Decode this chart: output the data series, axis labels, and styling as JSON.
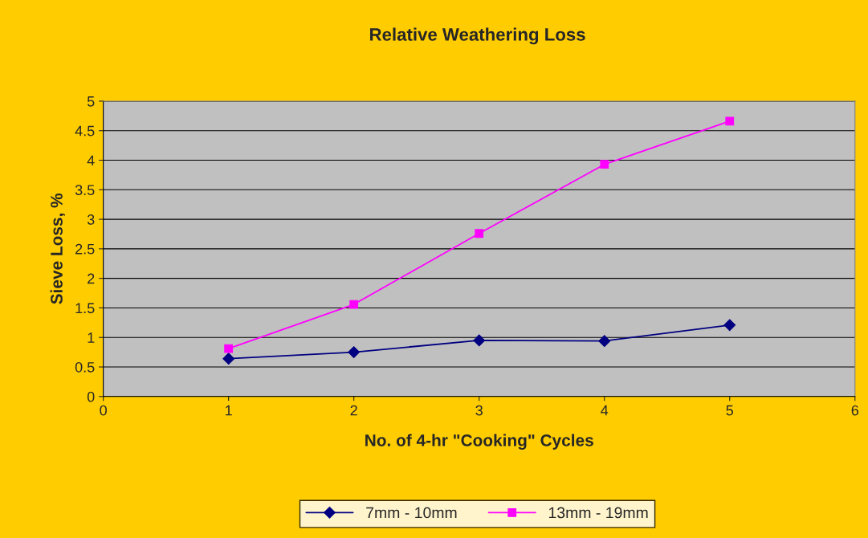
{
  "chart_data": {
    "type": "line",
    "title": "Relative Weathering Loss",
    "xlabel": "No. of 4-hr \"Cooking\" Cycles",
    "ylabel": "Sieve Loss, %",
    "x": [
      1,
      2,
      3,
      4,
      5
    ],
    "series": [
      {
        "name": "7mm - 10mm",
        "color": "#000080",
        "marker": "diamond",
        "values": [
          0.64,
          0.75,
          0.95,
          0.94,
          1.21
        ]
      },
      {
        "name": "13mm - 19mm",
        "color": "#ff00ff",
        "marker": "square",
        "values": [
          0.81,
          1.56,
          2.76,
          3.93,
          4.66
        ]
      }
    ],
    "xlim": [
      0,
      6
    ],
    "xticks": [
      0,
      1,
      2,
      3,
      4,
      5,
      6
    ],
    "ylim": [
      0,
      5
    ],
    "yticks": [
      0,
      0.5,
      1,
      1.5,
      2,
      2.5,
      3,
      3.5,
      4,
      4.5,
      5
    ],
    "grid": "y",
    "legend": "bottom",
    "line_style": "solid"
  }
}
